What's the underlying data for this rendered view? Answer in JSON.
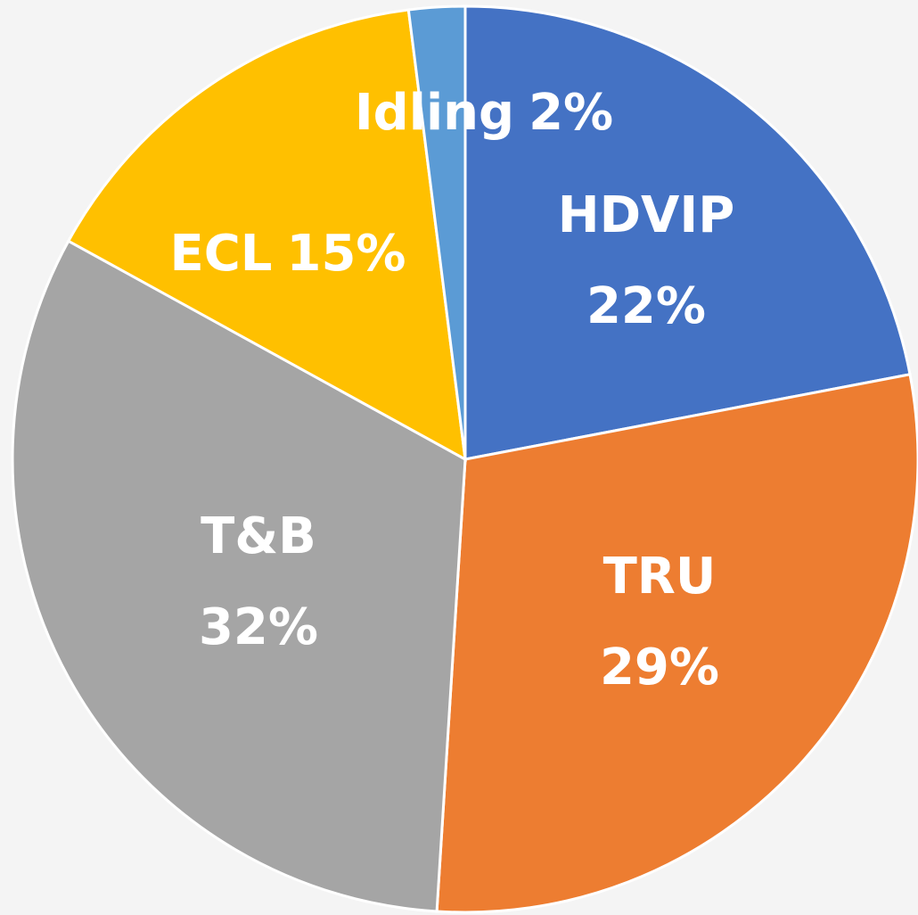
{
  "chart_data": {
    "type": "pie",
    "categories": [
      "HDVIP",
      "TRU",
      "T&B",
      "ECL",
      "Idling"
    ],
    "values": [
      22,
      29,
      32,
      15,
      2
    ],
    "value_labels": [
      "22%",
      "29%",
      "32%",
      "15%",
      "2%"
    ],
    "colors": [
      "#4472c4",
      "#ed7d31",
      "#a5a5a5",
      "#ffc000",
      "#5b9bd5"
    ]
  }
}
